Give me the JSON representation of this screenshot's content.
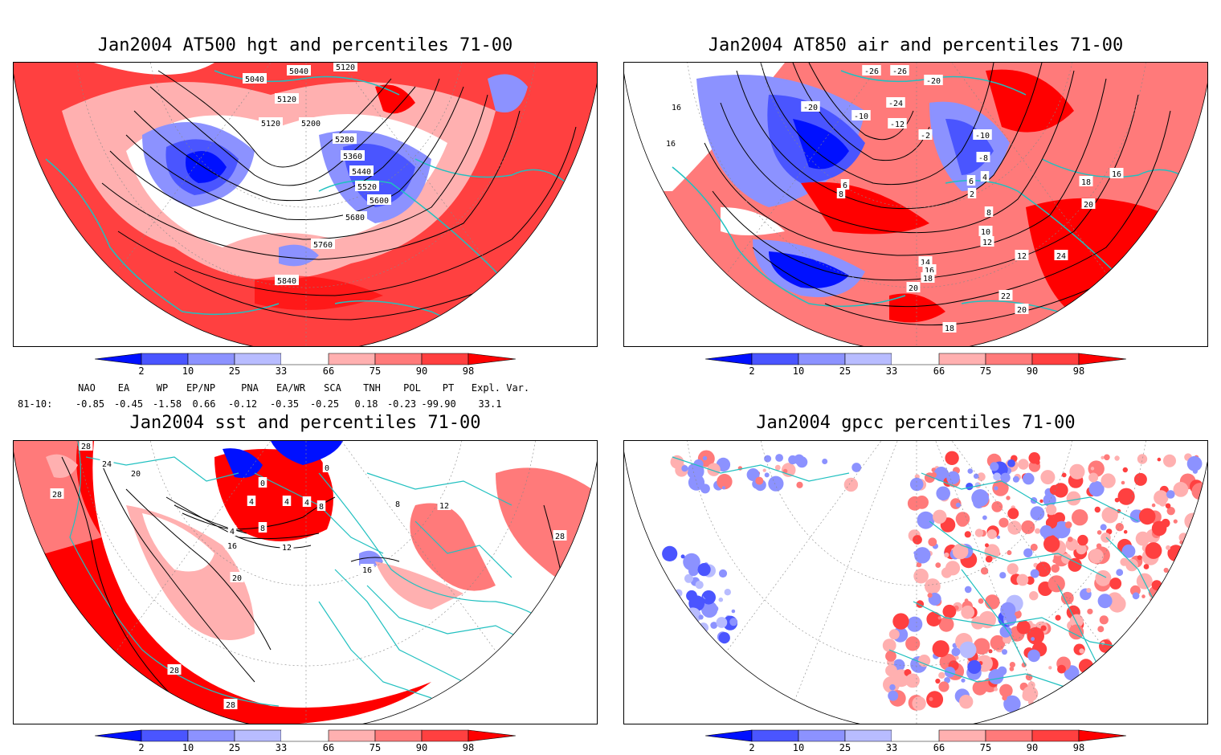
{
  "colors": {
    "blue_dark": "#0010ff",
    "blue_mid": "#4a55ff",
    "blue_light": "#8c92ff",
    "blue_pale": "#b8bcff",
    "red_pale": "#ffb0b0",
    "red_light": "#ff7a7a",
    "red_mid": "#ff4040",
    "red_dark": "#ff0000",
    "coast": "#20c0c0"
  },
  "colorbar": {
    "labels": [
      "2",
      "10",
      "25",
      "33",
      "66",
      "75",
      "90",
      "98"
    ]
  },
  "panels": [
    {
      "id": "tl",
      "title": "Jan2004 AT500 hgt and percentiles 71-00",
      "contour_labels": [
        "5040",
        "5120",
        "5040",
        "5120",
        "5120",
        "5200",
        "5280",
        "5360",
        "5440",
        "5520",
        "5600",
        "5680",
        "5760",
        "5840"
      ]
    },
    {
      "id": "tr",
      "title": "Jan2004 AT850 air and percentiles 71-00",
      "contour_labels": [
        "-26",
        "-26",
        "-20",
        "-24",
        "-20",
        "-10",
        "-12",
        "-2",
        "-10",
        "-8",
        "16",
        "16",
        "6",
        "8",
        "2",
        "4",
        "6",
        "8",
        "10",
        "12",
        "18",
        "16",
        "20",
        "12",
        "14",
        "16",
        "18",
        "20",
        "24",
        "22",
        "20",
        "18"
      ]
    },
    {
      "id": "bl",
      "title": "Jan2004 sst and percentiles 71-00",
      "contour_labels": [
        "28",
        "24",
        "20",
        "28",
        "0",
        "0",
        "4",
        "4",
        "4",
        "8",
        "4",
        "8",
        "12",
        "16",
        "20",
        "16",
        "12",
        "8",
        "28",
        "28",
        "28"
      ]
    },
    {
      "id": "br",
      "title": "Jan2004 gpcc percentiles 71-00",
      "contour_labels": []
    }
  ],
  "indices": {
    "headers": [
      "NAO",
      "EA",
      "WP",
      "EP/NP",
      "PNA",
      "EA/WR",
      "SCA",
      "TNH",
      "POL",
      "PT",
      "Expl. Var."
    ],
    "row_label": "81-10:",
    "values": [
      "-0.85",
      "-0.45",
      "-1.58",
      "0.66",
      "-0.12",
      "-0.35",
      "-0.25",
      "0.18",
      "-0.23",
      "-99.90",
      "33.1"
    ]
  }
}
